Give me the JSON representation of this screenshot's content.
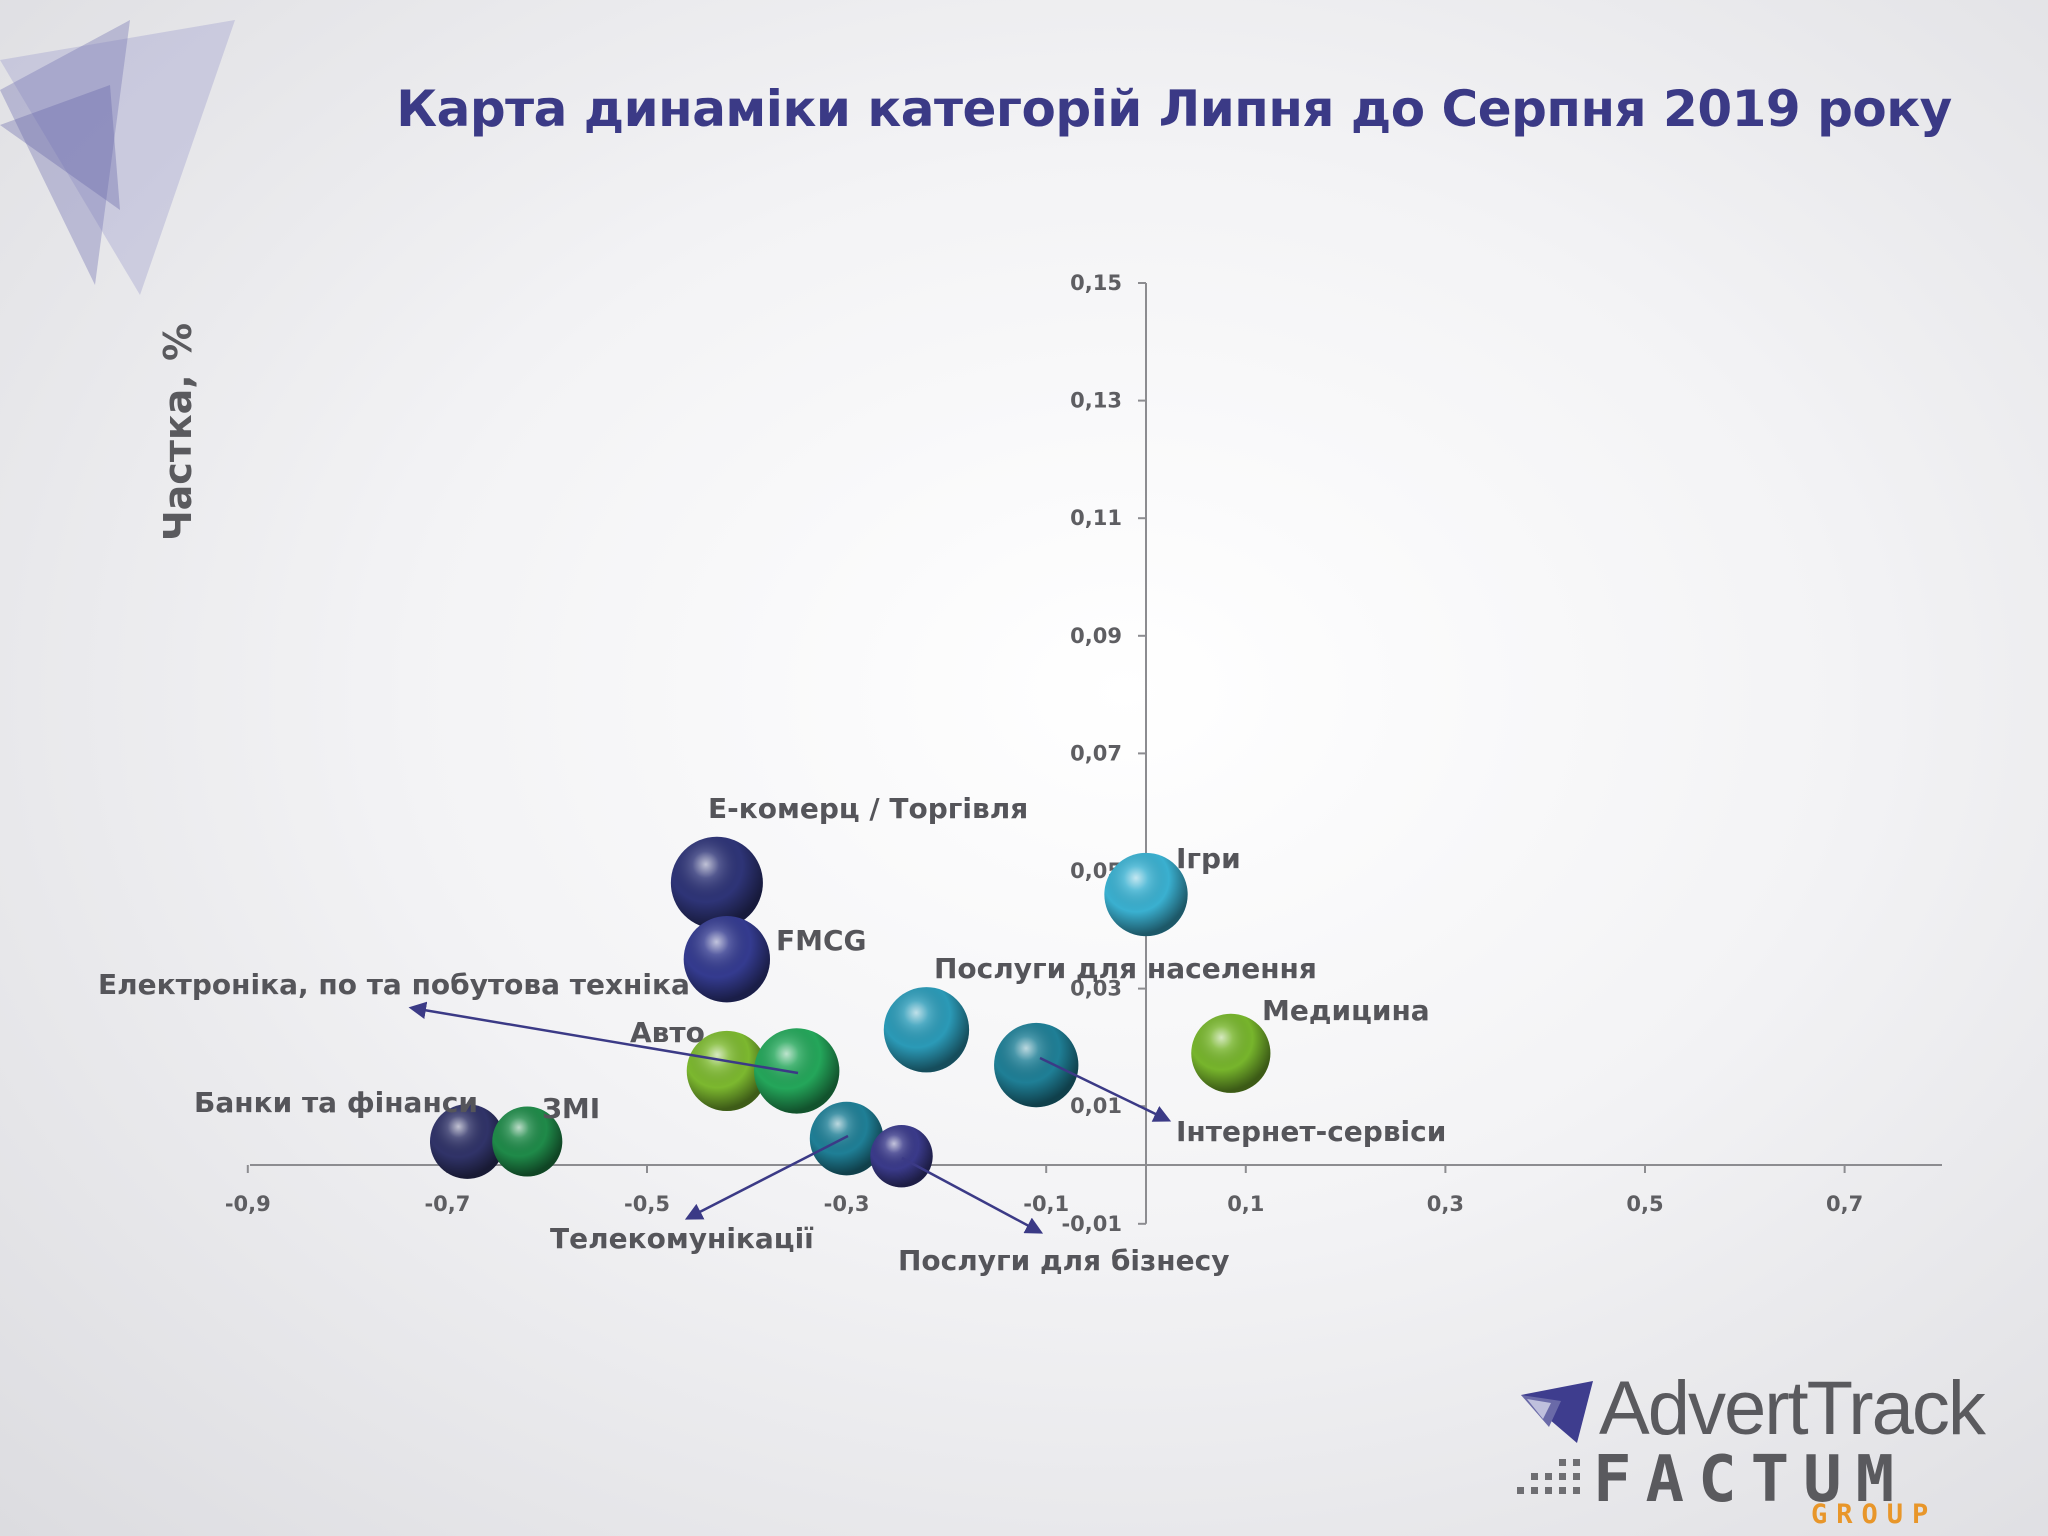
{
  "title": "Карта динаміки категорій Липня до Серпня 2019 року",
  "y_axis_label": "Частка, %",
  "logo": {
    "top": "AdvertTrack",
    "bottom": "FACTUM",
    "sub": "GROUP"
  },
  "colors": {
    "title": "#3b3a86",
    "axis": "#8c8c90",
    "label": "#55555a",
    "arrow": "#3b3a86",
    "logo_gray": "#5a5a5e",
    "logo_orange": "#e8962a"
  },
  "chart_data": {
    "type": "bubble",
    "title": "Карта динаміки категорій Липня до Серпня 2019 року",
    "ylabel": "Частка, %",
    "xlabel": "",
    "xlim": [
      -0.9,
      0.8
    ],
    "ylim": [
      -0.01,
      0.15
    ],
    "x_ticks": [
      "-0,9",
      "-0,7",
      "-0,5",
      "-0,3",
      "-0,1",
      "0,1",
      "0,3",
      "0,5",
      "0,7"
    ],
    "x_tick_values": [
      -0.9,
      -0.7,
      -0.5,
      -0.3,
      -0.1,
      0.1,
      0.3,
      0.5,
      0.7
    ],
    "y_ticks": [
      "-0,01",
      "0,01",
      "0,03",
      "0,05",
      "0,07",
      "0,09",
      "0,11",
      "0,13",
      "0,15"
    ],
    "y_tick_values": [
      -0.01,
      0.01,
      0.03,
      0.05,
      0.07,
      0.09,
      0.11,
      0.13,
      0.15
    ],
    "grid": false,
    "legend": "none",
    "points": [
      {
        "name": "Е-комерц / Торгівля",
        "x": -0.43,
        "y": 0.048,
        "size": 1.0,
        "color": "#2e3477"
      },
      {
        "name": "FMCG",
        "x": -0.42,
        "y": 0.035,
        "size": 0.88,
        "color": "#343b8f"
      },
      {
        "name": "Ігри",
        "x": 0.0,
        "y": 0.046,
        "size": 0.82,
        "color": "#3ab0d0"
      },
      {
        "name": "Послуги для населення",
        "x": -0.22,
        "y": 0.023,
        "size": 0.86,
        "color": "#2b9ab7"
      },
      {
        "name": "Медицина",
        "x": 0.085,
        "y": 0.019,
        "size": 0.74,
        "color": "#77b52c"
      },
      {
        "name": "Інтернет-сервіси",
        "x": -0.11,
        "y": 0.017,
        "size": 0.84,
        "color": "#1f7f96"
      },
      {
        "name": "Авто",
        "x": -0.42,
        "y": 0.016,
        "size": 0.76,
        "color": "#7cb82f"
      },
      {
        "name": "Електроніка, по та побутова техніка",
        "x": -0.35,
        "y": 0.016,
        "size": 0.86,
        "color": "#24a65a"
      },
      {
        "name": "Банки та фінанси",
        "x": -0.68,
        "y": 0.004,
        "size": 0.66,
        "color": "#303368"
      },
      {
        "name": "ЗМІ",
        "x": -0.62,
        "y": 0.004,
        "size": 0.58,
        "color": "#1f8a49"
      },
      {
        "name": "Телекомунікації",
        "x": -0.3,
        "y": 0.0045,
        "size": 0.64,
        "color": "#1f7f96"
      },
      {
        "name": "Послуги для бізнесу",
        "x": -0.245,
        "y": 0.0015,
        "size": 0.46,
        "color": "#3a3a8a"
      }
    ]
  }
}
